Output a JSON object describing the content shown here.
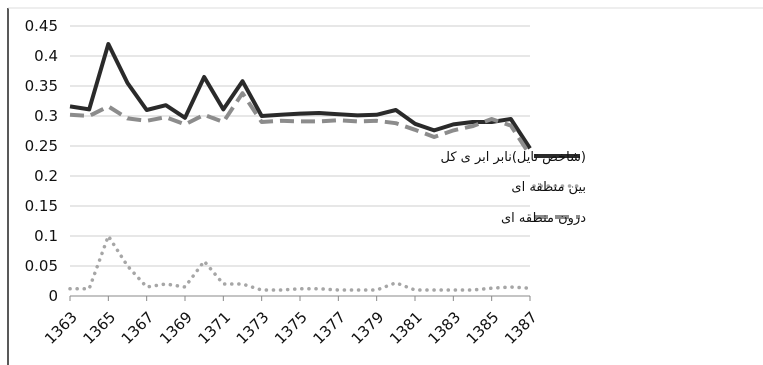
{
  "chart_data": {
    "type": "line",
    "x": [
      1363,
      1364,
      1365,
      1366,
      1367,
      1368,
      1369,
      1370,
      1371,
      1372,
      1373,
      1374,
      1375,
      1376,
      1377,
      1378,
      1379,
      1380,
      1381,
      1382,
      1383,
      1384,
      1385,
      1386,
      1387
    ],
    "x_tick_labels": [
      "1363",
      "1365",
      "1367",
      "1369",
      "1371",
      "1373",
      "1375",
      "1377",
      "1379",
      "1381",
      "1383",
      "1385",
      "1387"
    ],
    "y_tick_labels": [
      "0",
      "0.05",
      "0.1",
      "0.15",
      "0.2",
      "0.25",
      "0.3",
      "0.35",
      "0.4",
      "0.45"
    ],
    "ylim": [
      0,
      0.45
    ],
    "grid": "horizontal",
    "legend_position": "right",
    "series": [
      {
        "name": "(شاخص تایل)نابر ابر ی کل",
        "style": "solid",
        "color": "#2a2a2a",
        "values": [
          0.316,
          0.311,
          0.42,
          0.355,
          0.31,
          0.318,
          0.297,
          0.365,
          0.311,
          0.358,
          0.3,
          0.302,
          0.304,
          0.305,
          0.303,
          0.301,
          0.302,
          0.31,
          0.287,
          0.276,
          0.286,
          0.29,
          0.29,
          0.295,
          0.246
        ]
      },
      {
        "name": "بین منطقه ای",
        "style": "dotted",
        "color": "#a6a6a6",
        "values": [
          0.012,
          0.012,
          0.1,
          0.05,
          0.015,
          0.02,
          0.015,
          0.058,
          0.02,
          0.02,
          0.01,
          0.01,
          0.012,
          0.012,
          0.01,
          0.01,
          0.01,
          0.022,
          0.01,
          0.01,
          0.01,
          0.01,
          0.013,
          0.015,
          0.013
        ]
      },
      {
        "name": "درون منطقه ای",
        "style": "dashed",
        "color": "#8c8c8c",
        "values": [
          0.302,
          0.3,
          0.316,
          0.296,
          0.292,
          0.298,
          0.286,
          0.302,
          0.29,
          0.338,
          0.29,
          0.292,
          0.291,
          0.291,
          0.293,
          0.291,
          0.292,
          0.288,
          0.277,
          0.265,
          0.276,
          0.283,
          0.295,
          0.284,
          0.235
        ]
      }
    ]
  }
}
